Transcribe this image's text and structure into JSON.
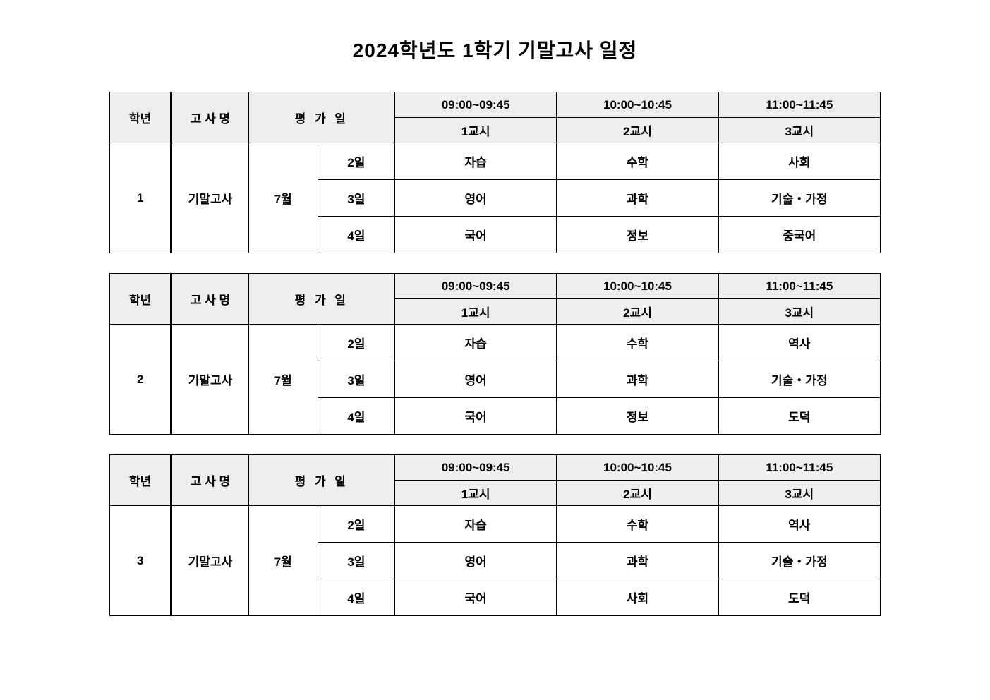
{
  "title": "2024학년도 1학기 기말고사 일정",
  "columns": {
    "grade_header": "학년",
    "exam_header": "고 사 명",
    "date_header": "평 가 일",
    "times": [
      "09:00~09:45",
      "10:00~10:45",
      "11:00~11:45"
    ],
    "periods": [
      "1교시",
      "2교시",
      "3교시"
    ]
  },
  "tables": [
    {
      "grade": "1",
      "exam_name": "기말고사",
      "month": "7월",
      "rows": [
        {
          "day": "2일",
          "subjects": [
            "자습",
            "수학",
            "사회"
          ]
        },
        {
          "day": "3일",
          "subjects": [
            "영어",
            "과학",
            "기술・가정"
          ]
        },
        {
          "day": "4일",
          "subjects": [
            "국어",
            "정보",
            "중국어"
          ]
        }
      ]
    },
    {
      "grade": "2",
      "exam_name": "기말고사",
      "month": "7월",
      "rows": [
        {
          "day": "2일",
          "subjects": [
            "자습",
            "수학",
            "역사"
          ]
        },
        {
          "day": "3일",
          "subjects": [
            "영어",
            "과학",
            "기술・가정"
          ]
        },
        {
          "day": "4일",
          "subjects": [
            "국어",
            "정보",
            "도덕"
          ]
        }
      ]
    },
    {
      "grade": "3",
      "exam_name": "기말고사",
      "month": "7월",
      "rows": [
        {
          "day": "2일",
          "subjects": [
            "자습",
            "수학",
            "역사"
          ]
        },
        {
          "day": "3일",
          "subjects": [
            "영어",
            "과학",
            "기술・가정"
          ]
        },
        {
          "day": "4일",
          "subjects": [
            "국어",
            "사회",
            "도덕"
          ]
        }
      ]
    }
  ],
  "styling": {
    "background_color": "#ffffff",
    "header_bg_color": "#eeeeee",
    "border_color": "#000000",
    "text_color": "#000000",
    "title_fontsize": 28,
    "cell_fontsize": 17,
    "grade_fontsize": 24,
    "font_weight": "bold"
  }
}
